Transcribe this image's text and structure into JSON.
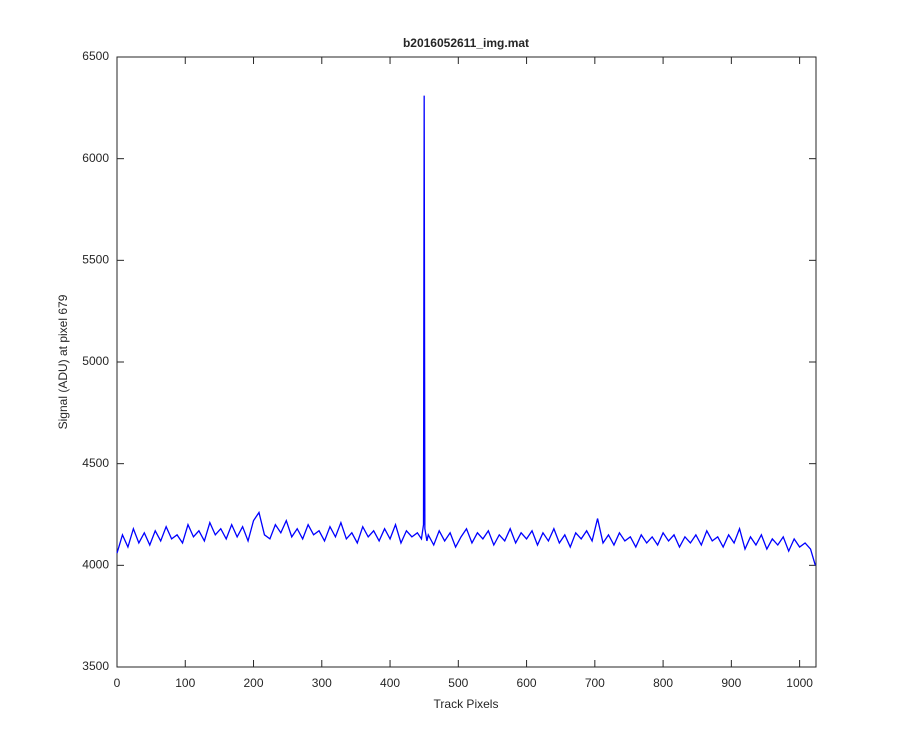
{
  "chart_data": {
    "type": "line",
    "title": "b2016052611_img.mat",
    "x_label": "Track Pixels",
    "y_label": "Signal (ADU) at pixel 679",
    "xlim": [
      0,
      1024
    ],
    "ylim": [
      3500,
      6500
    ],
    "xticks": [
      0,
      100,
      200,
      300,
      400,
      500,
      600,
      700,
      800,
      900,
      1000
    ],
    "yticks": [
      3500,
      4000,
      4500,
      5000,
      5500,
      6000,
      6500
    ],
    "series": [
      {
        "color": "#0000ff",
        "x": [
          0,
          8,
          16,
          24,
          32,
          40,
          48,
          56,
          64,
          72,
          80,
          88,
          96,
          104,
          112,
          120,
          128,
          136,
          144,
          152,
          160,
          168,
          176,
          184,
          192,
          200,
          208,
          216,
          224,
          232,
          240,
          248,
          256,
          264,
          272,
          280,
          288,
          296,
          304,
          312,
          320,
          328,
          336,
          344,
          352,
          360,
          368,
          376,
          384,
          392,
          400,
          408,
          416,
          424,
          432,
          440,
          446,
          449,
          450,
          451,
          454,
          456,
          464,
          472,
          480,
          488,
          496,
          504,
          512,
          520,
          528,
          536,
          544,
          552,
          560,
          568,
          576,
          584,
          592,
          600,
          608,
          616,
          624,
          632,
          640,
          648,
          656,
          664,
          672,
          680,
          688,
          696,
          704,
          712,
          720,
          728,
          736,
          744,
          752,
          760,
          768,
          776,
          784,
          792,
          800,
          808,
          816,
          824,
          832,
          840,
          848,
          856,
          864,
          872,
          880,
          888,
          896,
          904,
          912,
          920,
          928,
          936,
          944,
          952,
          960,
          968,
          976,
          984,
          992,
          1000,
          1008,
          1016,
          1023
        ],
        "values": [
          4060,
          4150,
          4090,
          4180,
          4110,
          4160,
          4100,
          4170,
          4120,
          4190,
          4130,
          4150,
          4110,
          4200,
          4140,
          4170,
          4120,
          4210,
          4150,
          4180,
          4130,
          4200,
          4140,
          4190,
          4120,
          4220,
          4260,
          4150,
          4130,
          4200,
          4160,
          4220,
          4140,
          4180,
          4130,
          4200,
          4150,
          4170,
          4120,
          4190,
          4140,
          4210,
          4130,
          4160,
          4110,
          4190,
          4140,
          4170,
          4120,
          4180,
          4130,
          4200,
          4110,
          4170,
          4140,
          4160,
          4130,
          4200,
          6310,
          4180,
          4120,
          4150,
          4100,
          4170,
          4120,
          4160,
          4090,
          4140,
          4180,
          4110,
          4160,
          4130,
          4170,
          4100,
          4150,
          4120,
          4180,
          4110,
          4160,
          4130,
          4170,
          4100,
          4160,
          4120,
          4180,
          4110,
          4150,
          4090,
          4160,
          4130,
          4170,
          4120,
          4230,
          4110,
          4150,
          4100,
          4160,
          4120,
          4140,
          4090,
          4150,
          4110,
          4140,
          4100,
          4160,
          4120,
          4150,
          4090,
          4140,
          4110,
          4150,
          4100,
          4170,
          4120,
          4140,
          4090,
          4150,
          4110,
          4180,
          4080,
          4140,
          4100,
          4150,
          4080,
          4130,
          4100,
          4140,
          4070,
          4130,
          4090,
          4110,
          4080,
          4000
        ]
      }
    ]
  }
}
